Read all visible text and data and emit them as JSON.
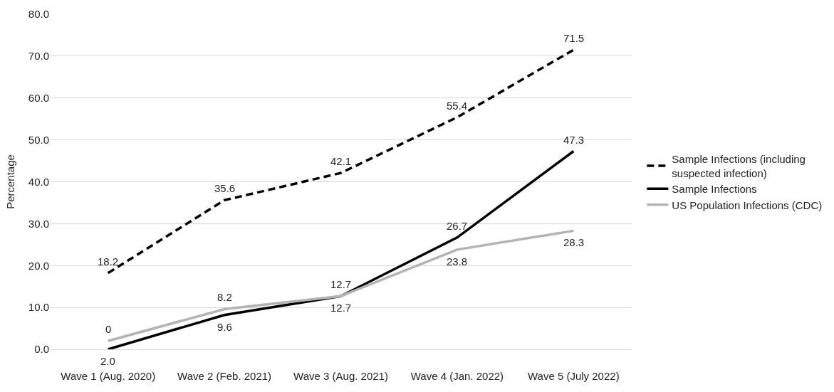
{
  "chart_data": {
    "type": "line",
    "ylabel": "Percentage",
    "categories": [
      "Wave 1 (Aug. 2020)",
      "Wave 2 (Feb. 2021)",
      "Wave 3 (Aug. 2021)",
      "Wave 4 (Jan. 2022)",
      "Wave 5 (July 2022)"
    ],
    "ylim": [
      0,
      80
    ],
    "yticks": [
      {
        "value": 0,
        "label": "0.0"
      },
      {
        "value": 10,
        "label": "10.0"
      },
      {
        "value": 20,
        "label": "20.0"
      },
      {
        "value": 30,
        "label": "30.0"
      },
      {
        "value": 40,
        "label": "40.0"
      },
      {
        "value": 50,
        "label": "50.0"
      },
      {
        "value": 60,
        "label": "60.0"
      },
      {
        "value": 70,
        "label": "70.0"
      },
      {
        "value": 80,
        "label": "80.0"
      }
    ],
    "grid": "y",
    "legend": "right",
    "marker": "none",
    "series": [
      {
        "name": "Sample Infections (including suspected infection)",
        "color": "#000000",
        "line_style": "dashed",
        "values": [
          18.2,
          35.6,
          42.1,
          55.4,
          71.5
        ],
        "value_labels": [
          "18.2",
          "35.6",
          "42.1",
          "55.4",
          "71.5"
        ]
      },
      {
        "name": "Sample Infections",
        "color": "#000000",
        "line_style": "solid",
        "values": [
          0,
          8.2,
          12.7,
          26.7,
          47.3
        ],
        "value_labels": [
          "0",
          "8.2",
          "12.7",
          "26.7",
          "47.3"
        ]
      },
      {
        "name": "US Population Infections (CDC)",
        "color": "#b3b3b3",
        "line_style": "solid",
        "values": [
          2.0,
          9.6,
          12.7,
          23.8,
          28.3
        ],
        "value_labels": [
          "2.0",
          "9.6",
          "12.7",
          "23.8",
          "28.3"
        ]
      }
    ]
  }
}
